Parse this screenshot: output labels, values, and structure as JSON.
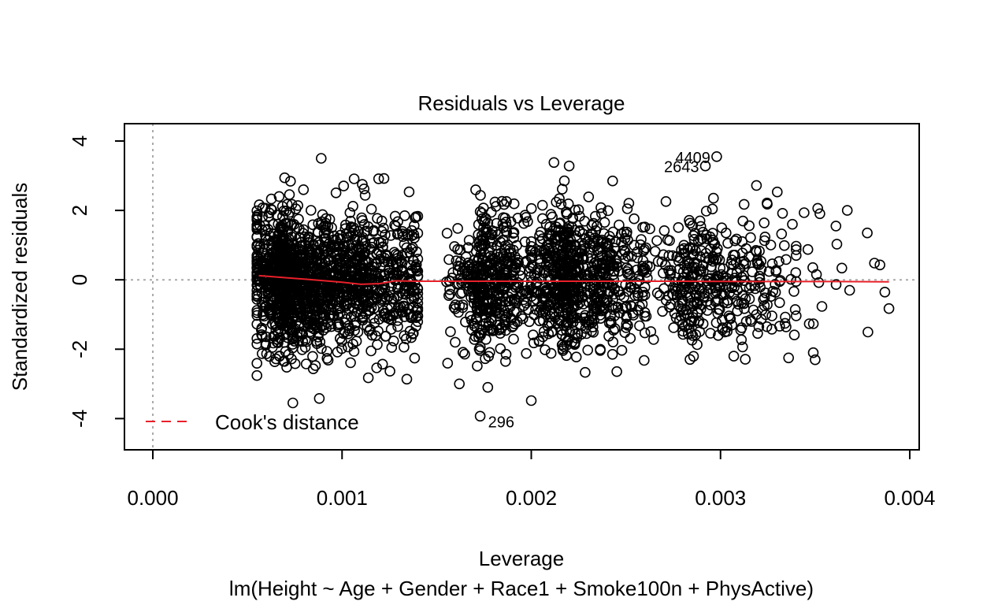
{
  "chart_data": {
    "type": "scatter",
    "title": "Residuals vs Leverage",
    "xlabel": "Leverage",
    "ylabel": "Standardized residuals",
    "caption": "lm(Height ~ Age + Gender + Race1 + Smoke100n + PhysActive)",
    "xlim": [
      -0.00015,
      0.00405
    ],
    "ylim": [
      -4.9,
      4.5
    ],
    "x_ticks": [
      {
        "value": 0.0,
        "label": "0.000"
      },
      {
        "value": 0.001,
        "label": "0.001"
      },
      {
        "value": 0.002,
        "label": "0.002"
      },
      {
        "value": 0.003,
        "label": "0.003"
      },
      {
        "value": 0.004,
        "label": "0.004"
      }
    ],
    "y_ticks": [
      {
        "value": -4,
        "label": "-4"
      },
      {
        "value": -2,
        "label": "-2"
      },
      {
        "value": 0,
        "label": "0"
      },
      {
        "value": 2,
        "label": "2"
      },
      {
        "value": 4,
        "label": "4"
      }
    ],
    "reference_lines": {
      "x": 0,
      "y": 0,
      "style": "dotted",
      "color": "#aaaaaa"
    },
    "legend": {
      "position": "bottom-left",
      "entries": [
        {
          "label": "Cook's distance",
          "color": "#e8202a",
          "style": "dashed"
        }
      ]
    },
    "point_style": {
      "shape": "open-circle",
      "color": "#000000"
    },
    "clusters": [
      {
        "x_range": [
          0.00055,
          0.0014
        ],
        "density_peak": 0.00075,
        "y_sd": 1.0,
        "count": 1500
      },
      {
        "x_range": [
          0.00155,
          0.002
        ],
        "density_peak": 0.00175,
        "y_sd": 0.95,
        "count": 450
      },
      {
        "x_range": [
          0.002,
          0.0026
        ],
        "density_peak": 0.0022,
        "y_sd": 0.95,
        "count": 700
      },
      {
        "x_range": [
          0.0026,
          0.0034
        ],
        "density_peak": 0.0029,
        "y_sd": 0.85,
        "count": 380
      },
      {
        "x_range": [
          0.0034,
          0.0039
        ],
        "density_peak": 0.00355,
        "y_sd": 1.0,
        "count": 20
      }
    ],
    "notable_points": [
      {
        "x": 0.00298,
        "y": 3.55
      },
      {
        "x": 0.00292,
        "y": 3.28
      },
      {
        "x": 0.00173,
        "y": -3.93
      },
      {
        "x": 0.00389,
        "y": -0.83
      },
      {
        "x": 0.00367,
        "y": 2.0
      },
      {
        "x": 0.002,
        "y": -3.48
      },
      {
        "x": 0.00074,
        "y": -3.55
      },
      {
        "x": 0.00088,
        "y": -3.42
      },
      {
        "x": 0.00212,
        "y": 3.38
      },
      {
        "x": 0.0022,
        "y": 3.28
      },
      {
        "x": 0.00089,
        "y": 3.5
      },
      {
        "x": 0.00319,
        "y": 2.72
      },
      {
        "x": 0.00162,
        "y": -3.0
      },
      {
        "x": 0.00177,
        "y": -3.1
      },
      {
        "x": 0.00338,
        "y": 1.6
      },
      {
        "x": 0.00361,
        "y": 1.55
      },
      {
        "x": 0.00336,
        "y": -2.25
      },
      {
        "x": 0.00349,
        "y": -2.1
      },
      {
        "x": 0.00307,
        "y": -2.2
      },
      {
        "x": 0.00243,
        "y": 2.85
      }
    ],
    "point_labels": [
      {
        "text": "4409",
        "x": 0.00298,
        "y": 3.55
      },
      {
        "text": "2643",
        "x": 0.00292,
        "y": 3.28
      },
      {
        "text": "296",
        "x": 0.00173,
        "y": -3.93
      }
    ],
    "smoother": {
      "color": "#e8202a",
      "points": [
        [
          0.00056,
          0.12
        ],
        [
          0.0007,
          0.06
        ],
        [
          0.00085,
          0.0
        ],
        [
          0.001,
          -0.07
        ],
        [
          0.0011,
          -0.13
        ],
        [
          0.0012,
          -0.11
        ],
        [
          0.00128,
          -0.03
        ],
        [
          0.0014,
          -0.04
        ],
        [
          0.0017,
          -0.04
        ],
        [
          0.002,
          -0.04
        ],
        [
          0.0024,
          -0.04
        ],
        [
          0.0028,
          -0.04
        ],
        [
          0.0032,
          -0.05
        ],
        [
          0.0036,
          -0.05
        ],
        [
          0.00389,
          -0.06
        ]
      ]
    }
  }
}
